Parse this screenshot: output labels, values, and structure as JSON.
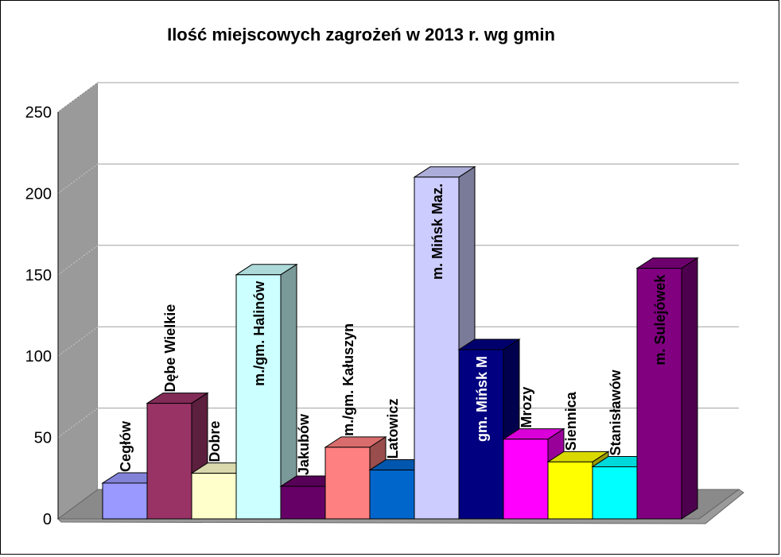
{
  "chart_data": {
    "type": "bar",
    "title": "Ilość miejscowych zagrożeń w 2013 r. wg gmin",
    "xlabel": "",
    "ylabel": "",
    "ylim": [
      0,
      250
    ],
    "yticks": [
      0,
      50,
      100,
      150,
      200,
      250
    ],
    "grid": true,
    "legend": "none",
    "three_d": true,
    "categories": [
      "Cegłów",
      "Dębe Wielkie",
      "Dobre",
      "m./gm. Halinów",
      "Jakubów",
      "m./gm. Kałuszyn",
      "Latowicz",
      "m. Mińsk Maz.",
      "gm. Mińsk M",
      "Mrozy",
      "Siennica",
      "Stanisławów",
      "m. Sulejówek"
    ],
    "values": [
      22,
      71,
      28,
      150,
      20,
      44,
      30,
      210,
      104,
      49,
      35,
      32,
      154
    ],
    "colors": [
      "#9999FF",
      "#993366",
      "#FFFFCC",
      "#CCFFFF",
      "#660066",
      "#FF8080",
      "#0066CC",
      "#CCCCFF",
      "#000080",
      "#FF00FF",
      "#FFFF00",
      "#00FFFF",
      "#800080"
    ],
    "label_colors": [
      "#000000",
      "#000000",
      "#000000",
      "#000000",
      "#000000",
      "#000000",
      "#000000",
      "#000000",
      "#FFFFFF",
      "#000000",
      "#000000",
      "#000000",
      "#000000"
    ]
  }
}
